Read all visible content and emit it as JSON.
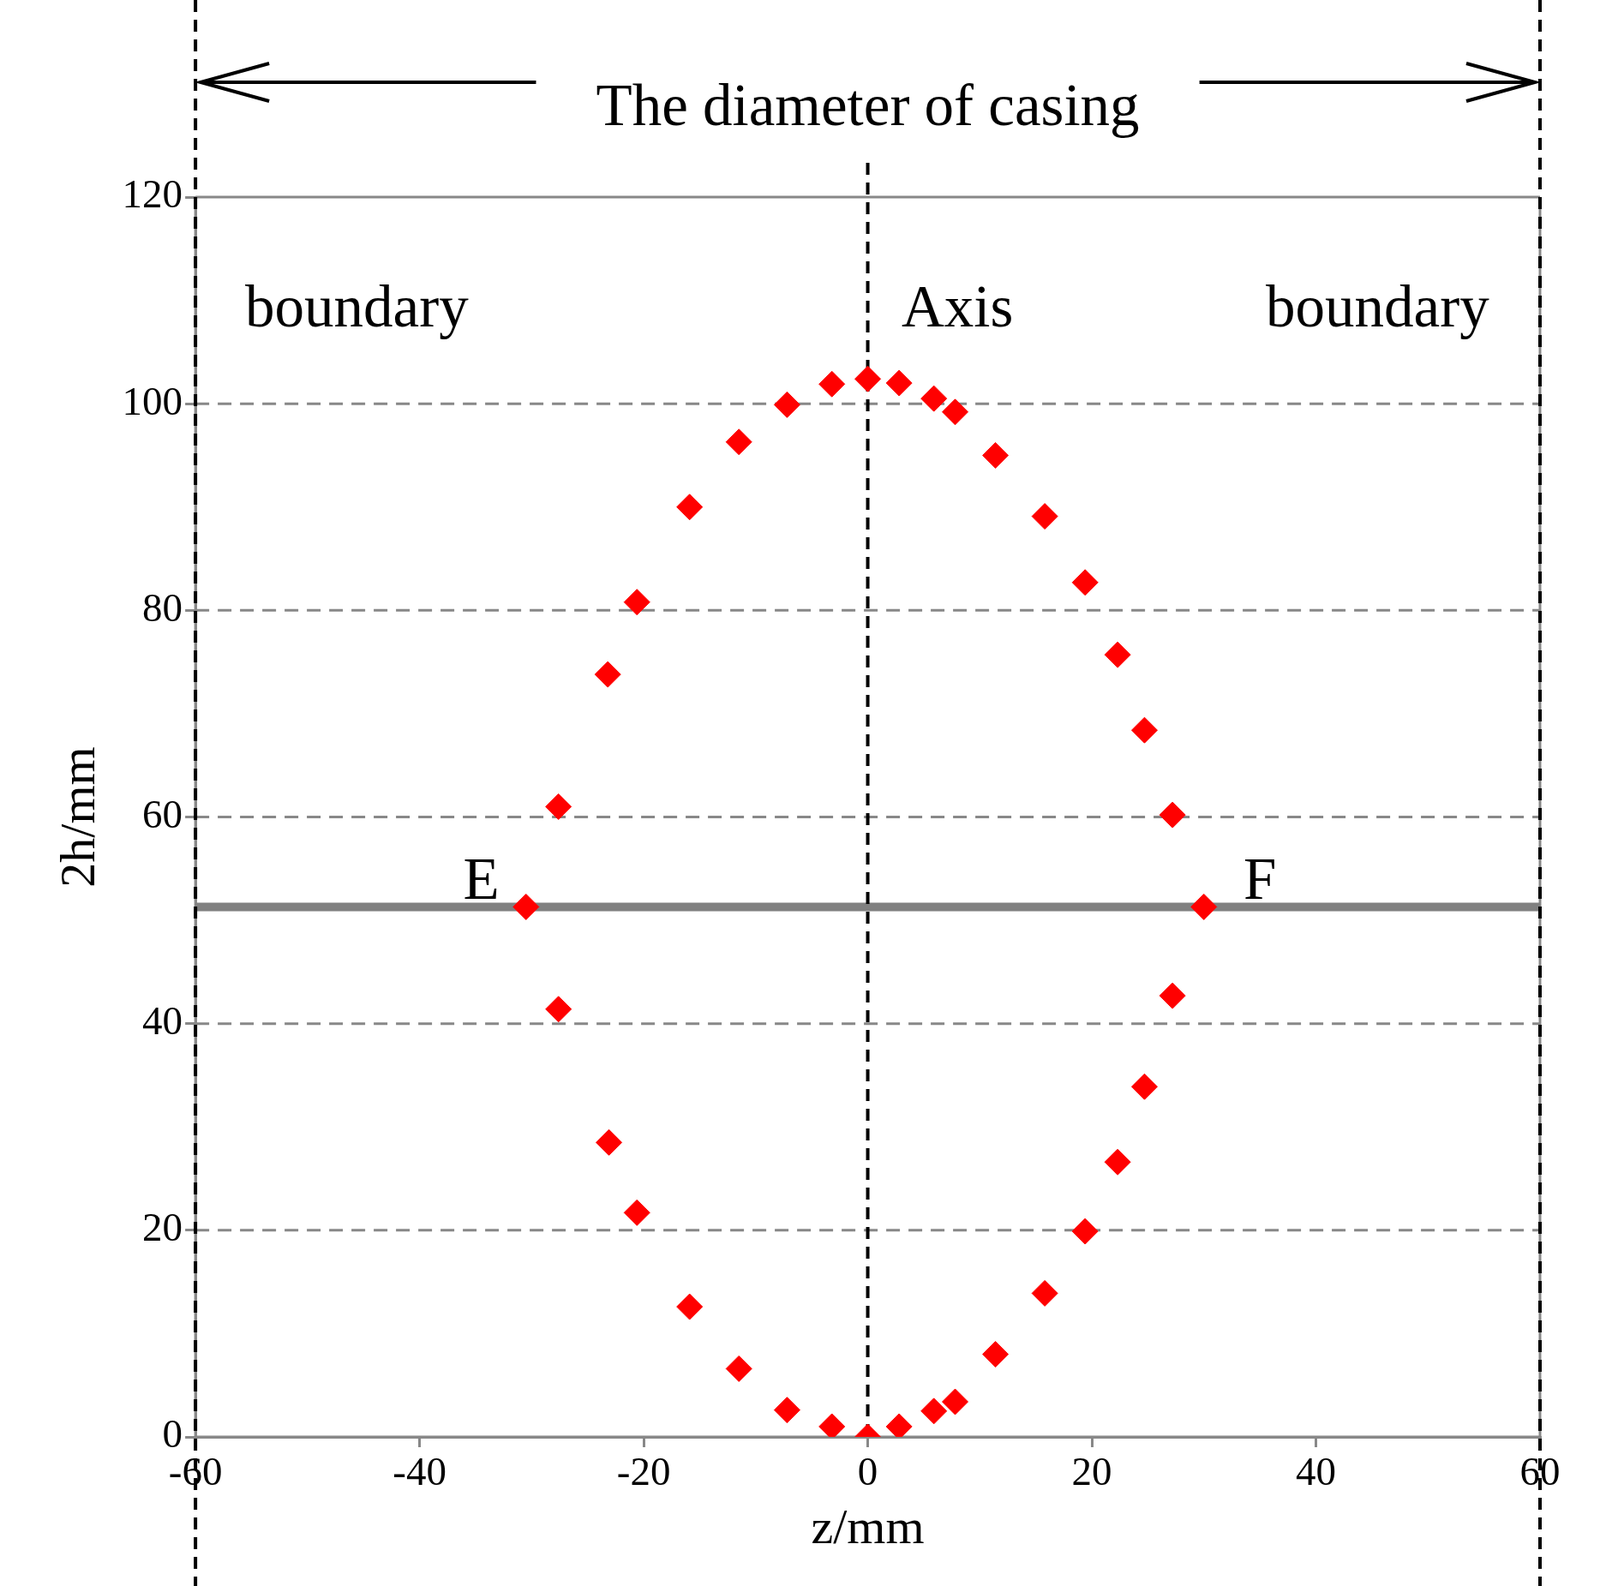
{
  "chart_data": {
    "type": "scatter",
    "title": "The diameter of casing",
    "x_label": "z/mm",
    "y_label": "2h/mm",
    "x": [
      -3.2,
      0,
      2.8,
      5.9,
      7.8,
      11.4,
      15.8,
      19.4,
      22.3,
      24.7,
      27.2,
      30,
      27.2,
      24.7,
      22.3,
      19.4,
      15.8,
      11.4,
      7.8,
      5.9,
      2.8,
      0,
      -3.2,
      -7.2,
      -11.5,
      -15.9,
      -20.6,
      -23.1,
      -27.6,
      -30.5,
      -27.6,
      -23.2,
      -20.6,
      -15.9,
      -11.5,
      -7.2
    ],
    "values": [
      101.9,
      102.4,
      102,
      100.5,
      99.2,
      95,
      89.1,
      82.7,
      75.7,
      68.4,
      60.2,
      51.3,
      42.7,
      33.9,
      26.6,
      19.9,
      13.9,
      8,
      3.4,
      2.5,
      1,
      0,
      1,
      2.6,
      6.6,
      12.6,
      21.7,
      28.5,
      41.4,
      51.3,
      61,
      73.8,
      80.8,
      90,
      96.3,
      99.9
    ],
    "color": "#ff0000",
    "marker": "diamond",
    "xlim": [
      -60,
      60
    ],
    "xticks": [
      -60,
      -40,
      -20,
      0,
      20,
      40,
      60
    ],
    "ylim": [
      0,
      120
    ],
    "yticks": [
      0,
      20,
      40,
      60,
      80,
      100,
      120
    ],
    "grid": true,
    "boundaries": [
      -60,
      60
    ],
    "axis_line": 0,
    "section_line": 51.3,
    "annotations": [
      {
        "text": "boundary",
        "x": -45.6,
        "y": 109
      },
      {
        "text": "Axis",
        "x": 8,
        "y": 109
      },
      {
        "text": "boundary",
        "x": 45.5,
        "y": 109
      },
      {
        "text": "E",
        "x": -34.5,
        "y": 53.6
      },
      {
        "text": "F",
        "x": 35,
        "y": 53.6
      }
    ]
  }
}
